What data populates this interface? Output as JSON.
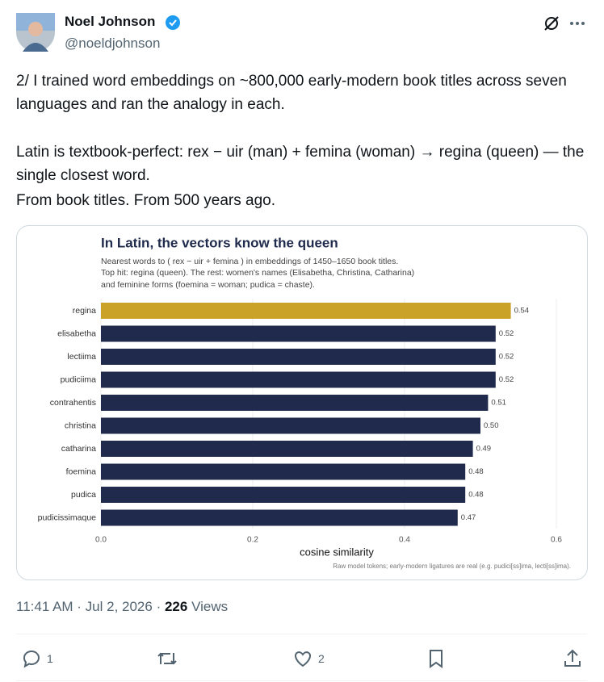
{
  "author": {
    "name": "Noel Johnson",
    "handle": "@noeldjohnson"
  },
  "tweet": {
    "paragraphs": [
      "2/ I trained word embeddings on ~800,000 early-modern book titles across seven languages and ran the analogy in each.",
      "Latin is textbook-perfect: rex − uir (man) + femina (woman) → regina (queen) — the single closest word.",
      "From book titles. From 500 years ago."
    ]
  },
  "chart_data": {
    "type": "barh",
    "title": "In Latin, the vectors know the queen",
    "subtitle": [
      "Nearest words to  ( rex − uir + femina )  in embeddings of 1450–1650 book titles.",
      "Top hit: regina (queen). The rest: women's names (Elisabetha, Christina, Catharina)",
      "and feminine forms (foemina = woman; pudica = chaste)."
    ],
    "categories": [
      "regina",
      "elisabetha",
      "lectiima",
      "pudiciima",
      "contrahentis",
      "christina",
      "catharina",
      "foemina",
      "pudica",
      "pudicissimaque"
    ],
    "values": [
      0.54,
      0.52,
      0.52,
      0.52,
      0.51,
      0.5,
      0.49,
      0.48,
      0.48,
      0.47
    ],
    "value_labels": [
      "0.54",
      "0.52",
      "0.52",
      "0.52",
      "0.51",
      "0.50",
      "0.49",
      "0.48",
      "0.48",
      "0.47"
    ],
    "colors": [
      "#c9a227",
      "#1f2a4d",
      "#1f2a4d",
      "#1f2a4d",
      "#1f2a4d",
      "#1f2a4d",
      "#1f2a4d",
      "#1f2a4d",
      "#1f2a4d",
      "#1f2a4d"
    ],
    "xlabel": "cosine similarity",
    "xlim": [
      0,
      0.6
    ],
    "xticks": [
      {
        "value": 0,
        "label": "0.0"
      },
      0.2,
      0.4,
      0.6
    ],
    "grid": true,
    "footnote": "Raw model tokens; early-modern ligatures are real (e.g. pudici[ss]ima, lecti[ss]ima)."
  },
  "meta": {
    "time_date": "11:41 AM · Jul 2, 2026 · ",
    "views": "226",
    "views_label": "Views"
  },
  "actions": {
    "replies": "1",
    "likes": "2"
  }
}
